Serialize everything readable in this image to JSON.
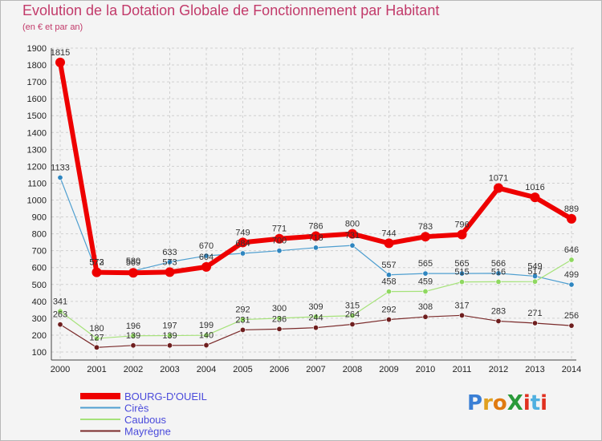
{
  "chart_data": {
    "type": "line",
    "title": "Evolution de la Dotation Globale de Fonctionnement par Habitant",
    "subtitle": "(en € et par an)",
    "xlabel": "",
    "ylabel": "",
    "ylim": [
      100,
      1900
    ],
    "yticks": [
      100,
      200,
      300,
      400,
      500,
      600,
      700,
      800,
      900,
      1000,
      1100,
      1200,
      1300,
      1400,
      1500,
      1600,
      1700,
      1800,
      1900
    ],
    "x": [
      "2000",
      "2001",
      "2002",
      "2003",
      "2004",
      "2005",
      "2006",
      "2007",
      "2008",
      "2009",
      "2010",
      "2011",
      "2012",
      "2013",
      "2014"
    ],
    "legend_position": "bottom-left",
    "series": [
      {
        "name": "Cirès",
        "color": "#4f9fd0",
        "marker": "#2f86c0",
        "width": 1.2,
        "values": [
          1133,
          573,
          580,
          633,
          670,
          684,
          700,
          718,
          731,
          557,
          565,
          565,
          566,
          549,
          499
        ],
        "labels": [
          "1133",
          "573",
          "580",
          "633",
          "670",
          "684",
          "700",
          "718",
          "731",
          "557",
          "565",
          "565",
          "566",
          "549",
          "499"
        ]
      },
      {
        "name": "Caubous",
        "color": "#a6e27a",
        "marker": "#8fd860",
        "width": 1.2,
        "values": [
          341,
          180,
          196,
          197,
          199,
          292,
          300,
          309,
          315,
          458,
          459,
          515,
          516,
          517,
          646
        ],
        "labels": [
          "341",
          "180",
          "196",
          "197",
          "199",
          "292",
          "300",
          "309",
          "315",
          "458",
          "459",
          "515",
          "516",
          "517",
          "646"
        ]
      },
      {
        "name": "Mayrègne",
        "color": "#7a2a2a",
        "marker": "#6e1e1e",
        "width": 1.2,
        "values": [
          263,
          127,
          139,
          139,
          140,
          231,
          236,
          244,
          264,
          292,
          308,
          317,
          283,
          271,
          256
        ],
        "labels": [
          "263",
          "127",
          "139",
          "139",
          "140",
          "231",
          "236",
          "244",
          "264",
          "292",
          "308",
          "317",
          "283",
          "271",
          "256"
        ]
      },
      {
        "name": "BOURG-D'OUEIL",
        "color": "#ee0000",
        "marker": "#ee0000",
        "width": 6,
        "values": [
          1815,
          572,
          569,
          573,
          604,
          749,
          771,
          786,
          800,
          744,
          783,
          796,
          1071,
          1016,
          889
        ],
        "labels": [
          "1815",
          "572",
          "569",
          "573",
          "604",
          "749",
          "771",
          "786",
          "800",
          "744",
          "783",
          "796",
          "1071",
          "1016",
          "889"
        ]
      }
    ],
    "legend_order": [
      "BOURG-D'OUEIL",
      "Cirès",
      "Caubous",
      "Mayrègne"
    ]
  },
  "logo": {
    "text": "ProXiti",
    "letter_colors": [
      "#3a7fd5",
      "#e0a020",
      "#e07a10",
      "#2a9a3a",
      "#e03020",
      "#50b0e0",
      "#e03020"
    ]
  }
}
